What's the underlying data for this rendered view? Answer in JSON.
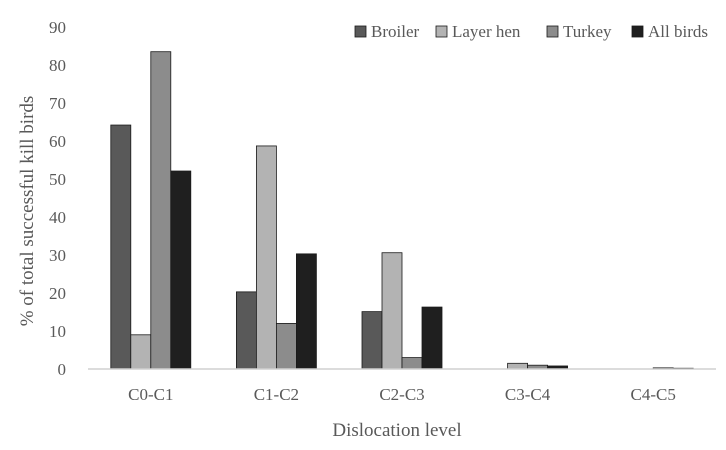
{
  "chart_data": {
    "type": "bar",
    "title": "",
    "xlabel": "Dislocation level",
    "ylabel": "% of total successful kill birds",
    "categories": [
      "C0-C1",
      "C1-C2",
      "C2-C3",
      "C3-C4",
      "C4-C5"
    ],
    "ylim": [
      0,
      90
    ],
    "yticks": [
      0,
      10,
      20,
      30,
      40,
      50,
      60,
      70,
      80,
      90
    ],
    "grid": false,
    "legend_position": "top-right",
    "series": [
      {
        "name": "Broiler",
        "color": "#595959",
        "values": [
          64.2,
          20.3,
          15.1,
          0.0,
          0.0
        ]
      },
      {
        "name": "Layer hen",
        "color": "#b3b3b3",
        "values": [
          9.0,
          58.7,
          30.6,
          1.5,
          0.0
        ]
      },
      {
        "name": "Turkey",
        "color": "#8c8c8c",
        "values": [
          83.5,
          12.0,
          3.0,
          1.0,
          0.3
        ]
      },
      {
        "name": "All birds",
        "color": "#1f1f1f",
        "values": [
          52.1,
          30.3,
          16.3,
          0.8,
          0.2
        ]
      }
    ]
  }
}
